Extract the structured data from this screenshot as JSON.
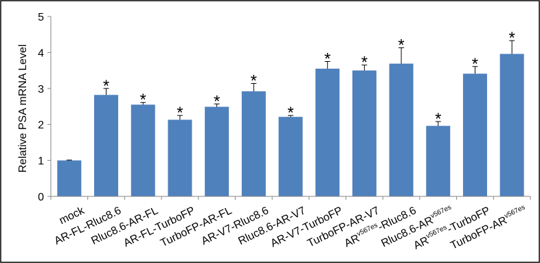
{
  "chart_data": {
    "type": "bar",
    "ylabel": "Relative PSA mRNA Level",
    "ylim": [
      0,
      5
    ],
    "yticks": [
      0,
      1,
      2,
      3,
      4,
      5
    ],
    "categories": [
      {
        "parts": [
          {
            "t": "mock"
          }
        ]
      },
      {
        "parts": [
          {
            "t": "AR-FL-Rluc8.6"
          }
        ]
      },
      {
        "parts": [
          {
            "t": "Rluc8.6-AR-FL"
          }
        ]
      },
      {
        "parts": [
          {
            "t": "AR-FL-TurboFP"
          }
        ]
      },
      {
        "parts": [
          {
            "t": "TurboFP-AR-FL"
          }
        ]
      },
      {
        "parts": [
          {
            "t": "AR-V7-Rluc8.6"
          }
        ]
      },
      {
        "parts": [
          {
            "t": "Rluc8.6-AR-V7"
          }
        ]
      },
      {
        "parts": [
          {
            "t": "AR-V7-TurboFP"
          }
        ]
      },
      {
        "parts": [
          {
            "t": "TurboFP-AR-V7"
          }
        ]
      },
      {
        "parts": [
          {
            "t": "AR"
          },
          {
            "t": "v567es",
            "sup": true
          },
          {
            "t": "-Rluc8.6"
          }
        ]
      },
      {
        "parts": [
          {
            "t": "Rluc8.6-AR"
          },
          {
            "t": "v567es",
            "sup": true
          }
        ]
      },
      {
        "parts": [
          {
            "t": "AR"
          },
          {
            "t": "v567es",
            "sup": true
          },
          {
            "t": "-TurboFP"
          }
        ]
      },
      {
        "parts": [
          {
            "t": "TurboFP-AR"
          },
          {
            "t": "v567es",
            "sup": true
          }
        ]
      }
    ],
    "values": [
      1.0,
      2.82,
      2.55,
      2.13,
      2.49,
      2.92,
      2.21,
      3.55,
      3.5,
      3.69,
      1.96,
      3.41,
      3.96
    ],
    "errors": [
      0.01,
      0.18,
      0.06,
      0.12,
      0.08,
      0.22,
      0.04,
      0.2,
      0.15,
      0.44,
      0.12,
      0.2,
      0.37
    ],
    "significant": [
      false,
      true,
      true,
      true,
      true,
      true,
      true,
      true,
      true,
      true,
      true,
      true,
      true
    ],
    "significance_marker": "*",
    "bar_color": "#4f81bd",
    "grid": false,
    "legend": "none"
  }
}
